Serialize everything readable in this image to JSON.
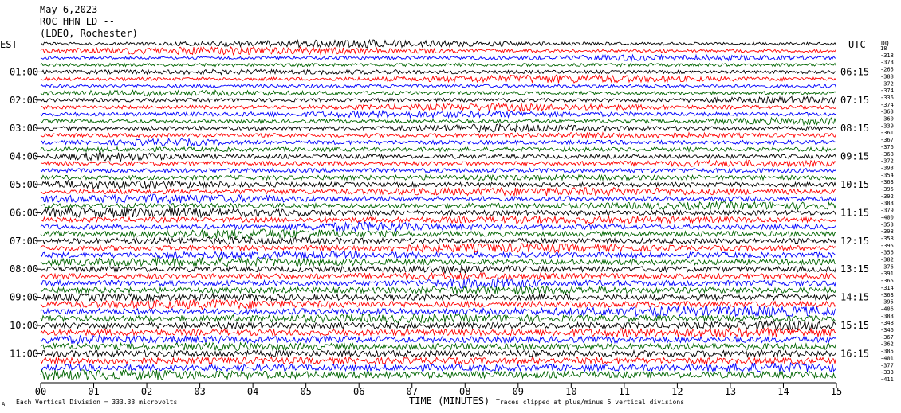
{
  "header": {
    "date": "May 6,2023",
    "station": "ROC HHN LD --",
    "network": "(LDEO, Rochester)",
    "left_tz": "EST",
    "right_tz": "UTC",
    "dq_label": "DQ"
  },
  "footer": {
    "scale_note": "Each Vertical Division =  333.33 microvolts",
    "xlabel": "TIME (MINUTES)",
    "clip_note": "Traces clipped at plus/minus 5 vertical divisions",
    "corner_mark": "A"
  },
  "chart_data": {
    "type": "line",
    "title": "May 6,2023",
    "xlabel": "TIME (MINUTES)",
    "ylabel": "",
    "xlim": [
      0,
      15
    ],
    "x_ticks": [
      "00",
      "01",
      "02",
      "03",
      "04",
      "05",
      "06",
      "07",
      "08",
      "09",
      "10",
      "11",
      "12",
      "13",
      "14",
      "15"
    ],
    "est_labels": [
      "01:00",
      "02:00",
      "03:00",
      "04:00",
      "05:00",
      "06:00",
      "07:00",
      "08:00",
      "09:00",
      "10:00",
      "11:00"
    ],
    "utc_labels": [
      "06:15",
      "07:15",
      "08:15",
      "09:15",
      "10:15",
      "11:15",
      "12:15",
      "13:15",
      "14:15",
      "15:15",
      "16:15"
    ],
    "trace_colors": [
      "#000000",
      "#ff0000",
      "#0000ff",
      "#006400"
    ],
    "dq_values": [
      "18",
      "-318",
      "-373",
      "-265",
      "-388",
      "-372",
      "-374",
      "-336",
      "-374",
      "-363",
      "-360",
      "-339",
      "-361",
      "-367",
      "-376",
      "-368",
      "-372",
      "-393",
      "-354",
      "-363",
      "-395",
      "-392",
      "-383",
      "-379",
      "-400",
      "-353",
      "-398",
      "-358",
      "-395",
      "-356",
      "-382",
      "-376",
      "-391",
      "-365",
      "-314",
      "-363",
      "-395",
      "-406",
      "-383",
      "-348",
      "-346",
      "-367",
      "-362",
      "-385",
      "-401",
      "-377",
      "-333",
      "-411"
    ],
    "annotations": [
      "Each Vertical Division =  333.33 microvolts",
      "Traces clipped at plus/minus 5 vertical divisions"
    ]
  }
}
